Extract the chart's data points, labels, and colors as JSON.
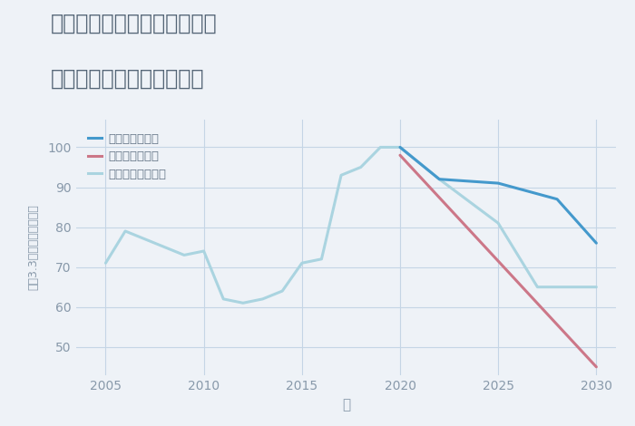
{
  "title_line1": "奈良県生駒郡斑鳩町五百井の",
  "title_line2": "中古マンションの価格推移",
  "xlabel": "年",
  "ylabel": "坪（3.3㎡）単価（万円）",
  "background_color": "#eef2f7",
  "plot_bg_color": "#eef2f7",
  "good_scenario": {
    "label": "グッドシナリオ",
    "color": "#4499cc",
    "years": [
      2020,
      2022,
      2025,
      2028,
      2030
    ],
    "values": [
      100,
      92,
      91,
      87,
      76
    ]
  },
  "bad_scenario": {
    "label": "バッドシナリオ",
    "color": "#cc7788",
    "years": [
      2020,
      2030
    ],
    "values": [
      98,
      45
    ]
  },
  "normal_scenario": {
    "label": "ノーマルシナリオ",
    "color": "#aad4e0",
    "years": [
      2005,
      2006,
      2008,
      2009,
      2010,
      2011,
      2012,
      2013,
      2014,
      2015,
      2016,
      2017,
      2018,
      2019,
      2020,
      2022,
      2025,
      2027,
      2030
    ],
    "values": [
      71,
      79,
      75,
      73,
      74,
      62,
      61,
      62,
      64,
      71,
      72,
      93,
      95,
      100,
      100,
      92,
      81,
      65,
      65
    ]
  },
  "xlim": [
    2003.5,
    2031
  ],
  "ylim": [
    43,
    107
  ],
  "xticks": [
    2005,
    2010,
    2015,
    2020,
    2025,
    2030
  ],
  "yticks": [
    50,
    60,
    70,
    80,
    90,
    100
  ],
  "grid_color": "#c5d5e5",
  "title_color": "#556677",
  "axis_color": "#8899aa",
  "legend_text_color": "#667788"
}
